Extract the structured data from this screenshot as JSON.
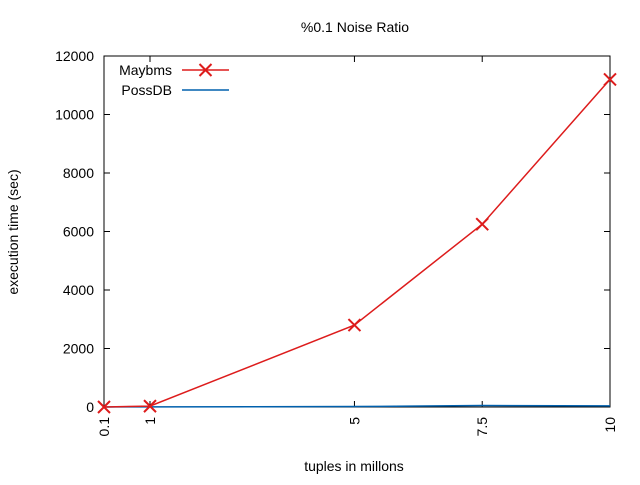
{
  "chart_data": {
    "type": "line",
    "title": "%0.1 Noise Ratio",
    "xlabel": "tuples in millons",
    "ylabel": "execution time (sec)",
    "x": [
      0.1,
      1,
      5,
      7.5,
      10
    ],
    "x_tick_labels": [
      "0.1",
      "1",
      "5",
      "7.5",
      "10"
    ],
    "xlim": [
      0.1,
      10
    ],
    "ylim": [
      0,
      12000
    ],
    "y_ticks": [
      0,
      2000,
      4000,
      6000,
      8000,
      10000,
      12000
    ],
    "grid": false,
    "legend_position": "top-left",
    "series": [
      {
        "name": "Maybms",
        "color": "#dd1c1c",
        "marker": "x",
        "values": [
          0,
          30,
          2800,
          6250,
          11200
        ]
      },
      {
        "name": "PossDB",
        "color": "#0060ad",
        "marker": "none",
        "values": [
          0,
          5,
          15,
          50,
          40
        ]
      }
    ]
  }
}
